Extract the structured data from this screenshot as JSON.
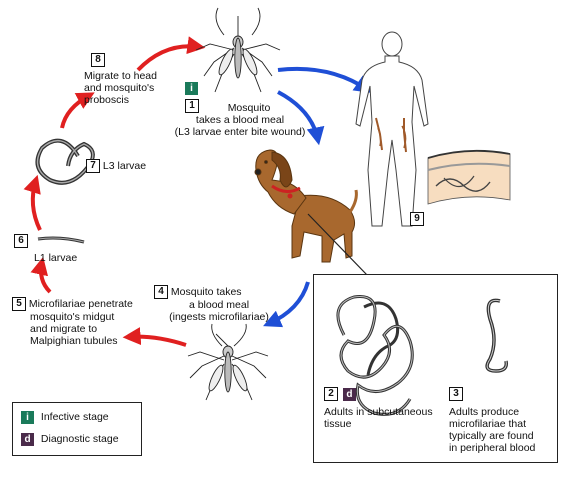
{
  "colors": {
    "infective": "#1a7a5a",
    "diagnostic": "#4a2a4a",
    "arrow_red": "#e02020",
    "arrow_blue": "#1f4fd6",
    "dog": "#a8682e",
    "collar": "#cc2222"
  },
  "icons": {
    "infective": "letter-i-badge",
    "diagnostic": "letter-d-badge"
  },
  "steps": [
    {
      "num": "1",
      "lines": [
        "Mosquito",
        "takes a blood meal",
        "(L3 larvae enter bite wound)"
      ]
    },
    {
      "num": "2",
      "lines": [
        "Adults in subcutaneous",
        "tissue"
      ]
    },
    {
      "num": "3",
      "lines": [
        "Adults produce",
        "microfilariae that",
        "typically are found",
        "in peripheral blood"
      ]
    },
    {
      "num": "4",
      "lines": [
        "Mosquito takes",
        "a blood meal",
        "(ingests microfilariae)"
      ]
    },
    {
      "num": "5",
      "lines": [
        "Microfilariae penetrate",
        "mosquito's midgut",
        "and migrate to",
        "Malpighian tubules"
      ]
    },
    {
      "num": "6",
      "lines": [
        "L1 larvae"
      ]
    },
    {
      "num": "7",
      "lines": [
        "L3 larvae"
      ]
    },
    {
      "num": "8",
      "lines": [
        "Migrate to head",
        "and mosquito's",
        "proboscis"
      ]
    },
    {
      "num": "9",
      "lines": []
    }
  ],
  "badges": {
    "infective": "i",
    "diagnostic": "d"
  },
  "legend": {
    "infective": "Infective stage",
    "diagnostic": "Diagnostic stage"
  }
}
